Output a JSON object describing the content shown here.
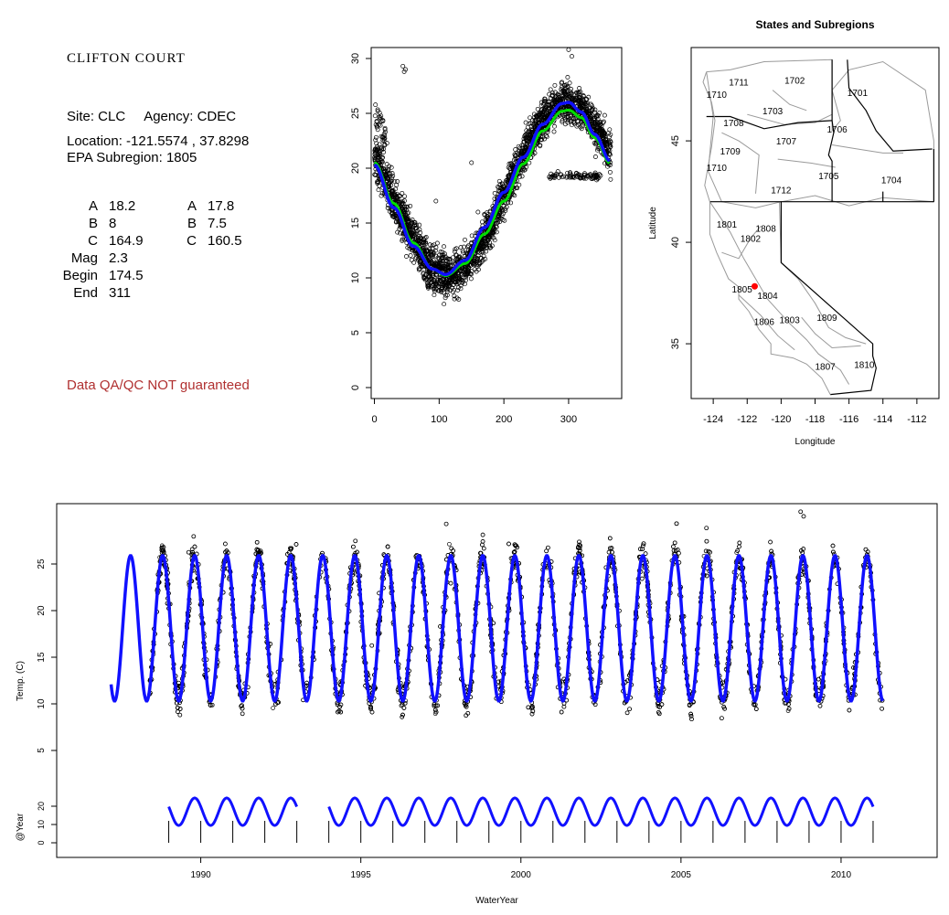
{
  "site_panel": {
    "title": "CLIFTON COURT",
    "site_line": "Site: CLC     Agency: CDEC",
    "location_line": "Location: -121.5574 , 37.8298",
    "subregion_line": "EPA Subregion: 1805",
    "params_left": [
      {
        "label": "A",
        "value": "18.2"
      },
      {
        "label": "B",
        "value": "8"
      },
      {
        "label": "C",
        "value": "164.9"
      },
      {
        "label": "Mag",
        "value": "2.3"
      },
      {
        "label": "Begin",
        "value": "174.5"
      },
      {
        "label": "End",
        "value": "311"
      }
    ],
    "params_right": [
      {
        "label": "A",
        "value": "17.8"
      },
      {
        "label": "B",
        "value": "7.5"
      },
      {
        "label": "C",
        "value": "160.5"
      }
    ],
    "disclaimer": "Data QA/QC NOT guaranteed"
  },
  "chart_data": [
    {
      "type": "scatter",
      "title": "",
      "xlabel": "",
      "ylabel": "",
      "xlim": [
        -5,
        382
      ],
      "ylim": [
        -1,
        31
      ],
      "xticks": [
        0,
        100,
        200,
        300
      ],
      "yticks": [
        0,
        5,
        10,
        15,
        20,
        25,
        30
      ],
      "scatter_description": "daily water temperature by day of water year (dense black open circles)",
      "series": [
        {
          "color": "#00dd00",
          "values_x": [
            0,
            30,
            60,
            90,
            110,
            140,
            170,
            200,
            230,
            260,
            290,
            300,
            320,
            340,
            365
          ],
          "values_y": [
            20.5,
            16.8,
            13.2,
            10.8,
            10.2,
            11.3,
            14.0,
            17.0,
            20.4,
            23.4,
            25.2,
            25.3,
            24.6,
            22.8,
            20.4
          ]
        },
        {
          "color": "#1010ff",
          "values_x": [
            0,
            30,
            60,
            90,
            110,
            140,
            170,
            200,
            230,
            260,
            290,
            300,
            320,
            340,
            365
          ],
          "values_y": [
            20.3,
            16.4,
            12.9,
            10.8,
            10.3,
            11.6,
            14.6,
            17.8,
            21.0,
            24.0,
            25.9,
            26.0,
            25.1,
            23.1,
            20.6
          ]
        }
      ]
    },
    {
      "type": "map",
      "title": "States and Subregions",
      "xlabel": "Longitude",
      "ylabel": "Latitude",
      "xlim": [
        -125.3,
        -110.7
      ],
      "ylim": [
        32.3,
        49.6
      ],
      "xticks": [
        -124,
        -122,
        -120,
        -118,
        -116,
        -114,
        -112
      ],
      "yticks": [
        35,
        40,
        45
      ],
      "regions": [
        {
          "code": "1711",
          "lon": -122.5,
          "lat": 47.9
        },
        {
          "code": "1710",
          "lon": -123.8,
          "lat": 47.3
        },
        {
          "code": "1702",
          "lon": -119.2,
          "lat": 48.0
        },
        {
          "code": "1701",
          "lon": -115.5,
          "lat": 47.4
        },
        {
          "code": "1703",
          "lon": -120.5,
          "lat": 46.5
        },
        {
          "code": "1708",
          "lon": -122.8,
          "lat": 45.9
        },
        {
          "code": "1706",
          "lon": -116.7,
          "lat": 45.6
        },
        {
          "code": "1707",
          "lon": -119.7,
          "lat": 45.0
        },
        {
          "code": "1709",
          "lon": -123.0,
          "lat": 44.5
        },
        {
          "code": "1710",
          "lon": -123.8,
          "lat": 43.7
        },
        {
          "code": "1705",
          "lon": -117.2,
          "lat": 43.3
        },
        {
          "code": "1704",
          "lon": -113.5,
          "lat": 43.1
        },
        {
          "code": "1712",
          "lon": -120.0,
          "lat": 42.6
        },
        {
          "code": "1801",
          "lon": -123.2,
          "lat": 40.9
        },
        {
          "code": "1808",
          "lon": -120.9,
          "lat": 40.7
        },
        {
          "code": "1802",
          "lon": -121.8,
          "lat": 40.2
        },
        {
          "code": "1805",
          "lon": -122.3,
          "lat": 37.7
        },
        {
          "code": "1804",
          "lon": -120.8,
          "lat": 37.4
        },
        {
          "code": "1806",
          "lon": -121.0,
          "lat": 36.1
        },
        {
          "code": "1803",
          "lon": -119.5,
          "lat": 36.2
        },
        {
          "code": "1809",
          "lon": -117.3,
          "lat": 36.3
        },
        {
          "code": "1807",
          "lon": -117.4,
          "lat": 33.9
        },
        {
          "code": "1810",
          "lon": -115.1,
          "lat": 34.0
        }
      ],
      "site_marker": {
        "lon": -121.5574,
        "lat": 37.8298,
        "color": "#ff0000"
      }
    },
    {
      "type": "line",
      "title": "",
      "xlabel": "WaterYear",
      "ylabel": "Temp. (C)",
      "ylabel2": "@Year",
      "xlim": [
        1985.5,
        2013.0
      ],
      "ylim": [
        0,
        30
      ],
      "xticks": [
        1990,
        1995,
        2000,
        2005,
        2010
      ],
      "yticks": [
        5,
        10,
        15,
        20,
        25
      ],
      "yticks2": [
        0,
        10,
        20
      ],
      "series": [
        {
          "name": "",
          "color": "#1010ff",
          "x_start": 1987.2,
          "x_end": 2011.3,
          "mean": 18.1,
          "amplitude": 7.8,
          "period_years": 1.0
        }
      ],
      "scatter_description": "daily observed water temperature (black open circles), water years 1988-2011",
      "mini_series": [
        {
          "x_start": 1989.0,
          "x_end": 1993.0
        },
        {
          "x_start": 1994.0,
          "x_end": 2011.0
        }
      ]
    }
  ]
}
